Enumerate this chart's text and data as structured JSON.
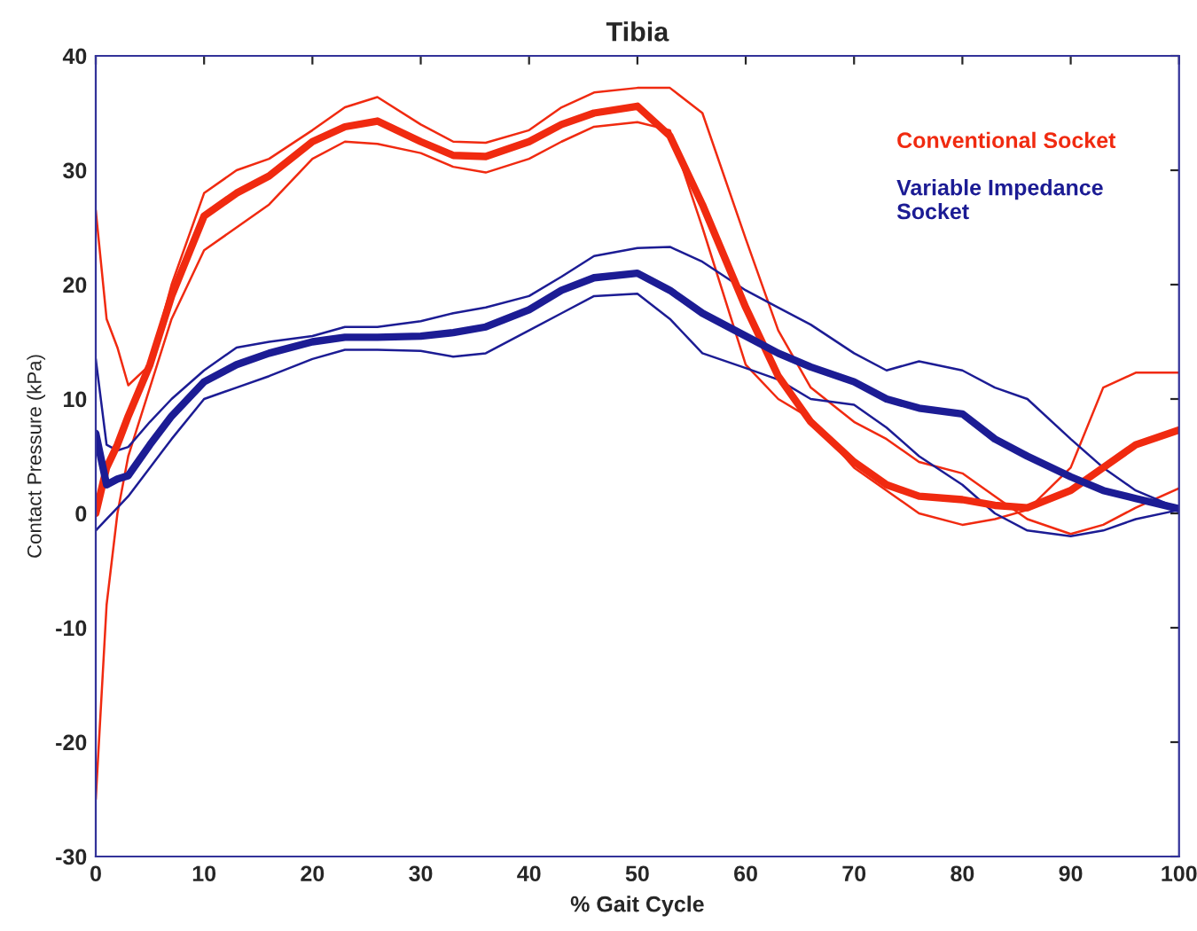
{
  "chart_data": {
    "type": "line",
    "title": "Tibia",
    "xlabel": "% Gait Cycle",
    "ylabel": "Contact Pressure (kPa)",
    "x": [
      0,
      1,
      2,
      3,
      5,
      7,
      10,
      13,
      16,
      20,
      23,
      26,
      30,
      33,
      36,
      40,
      43,
      46,
      50,
      53,
      56,
      60,
      63,
      66,
      70,
      73,
      76,
      80,
      83,
      86,
      90,
      93,
      96,
      100
    ],
    "series": [
      {
        "color": "#f02a10",
        "values": [
          26.5,
          17,
          14.5,
          11.2,
          13,
          20,
          28,
          30,
          31,
          33.5,
          35.5,
          36.4,
          34,
          32.5,
          32.4,
          33.5,
          35.5,
          36.8,
          37.2,
          37.2,
          35,
          24,
          16,
          11,
          8,
          6.5,
          4.5,
          3.5,
          1.5,
          -0.5,
          -1.8,
          -1,
          0.5,
          2.2
        ]
      },
      {
        "color": "#f02a10",
        "values": [
          -25,
          -8,
          0,
          5,
          11,
          17,
          23,
          25,
          27,
          31,
          32.5,
          32.3,
          31.5,
          30.3,
          29.8,
          31,
          32.5,
          33.8,
          34.2,
          33.5,
          25,
          13,
          10,
          8.3,
          4,
          2,
          0,
          -1,
          -0.5,
          0.3,
          4,
          11,
          12.3,
          12.3
        ]
      },
      {
        "color": "#1c1c94",
        "values": [
          13.5,
          6,
          5.5,
          5.8,
          8,
          10,
          12.5,
          14.5,
          15,
          15.5,
          16.3,
          16.3,
          16.8,
          17.5,
          18,
          19,
          20.7,
          22.5,
          23.2,
          23.3,
          22,
          19.5,
          18,
          16.5,
          14,
          12.5,
          13.3,
          12.5,
          11,
          10,
          6.5,
          4,
          2,
          0.4
        ]
      },
      {
        "color": "#1c1c94",
        "values": [
          -1.5,
          -0.5,
          0.5,
          1.5,
          4,
          6.5,
          10,
          11,
          12,
          13.5,
          14.3,
          14.3,
          14.2,
          13.7,
          14,
          16,
          17.5,
          19,
          19.2,
          17,
          14,
          12.7,
          11.7,
          10,
          9.5,
          7.5,
          5,
          2.5,
          0,
          -1.5,
          -2,
          -1.5,
          -0.5,
          0.3
        ]
      },
      {
        "name": "Conventional Socket",
        "color": "#f02a10",
        "values": [
          0,
          4,
          6,
          8.5,
          13,
          19,
          26,
          28,
          29.5,
          32.5,
          33.8,
          34.3,
          32.5,
          31.3,
          31.2,
          32.5,
          34,
          35,
          35.6,
          33,
          27,
          18,
          12,
          8,
          4.5,
          2.5,
          1.5,
          1.2,
          0.7,
          0.5,
          2,
          4,
          6,
          7.3
        ]
      },
      {
        "name": "Variable Impedance\nSocket",
        "color": "#1c1c94",
        "values": [
          7,
          2.5,
          3,
          3.3,
          6,
          8.5,
          11.5,
          13,
          14,
          15,
          15.4,
          15.4,
          15.5,
          15.8,
          16.3,
          17.8,
          19.5,
          20.6,
          21,
          19.5,
          17.5,
          15.5,
          14,
          12.8,
          11.5,
          10,
          9.2,
          8.7,
          6.5,
          5,
          3.2,
          2,
          1.3,
          0.4
        ]
      }
    ],
    "xlim": [
      0,
      100
    ],
    "xticks": [
      0,
      10,
      20,
      30,
      40,
      50,
      60,
      70,
      80,
      90,
      100
    ],
    "ylim": [
      -30,
      40
    ],
    "yticks": [
      -30,
      -20,
      -10,
      0,
      10,
      20,
      30,
      40
    ],
    "grid": false,
    "legend": "top right",
    "marker": "none",
    "line_style": "solid"
  }
}
